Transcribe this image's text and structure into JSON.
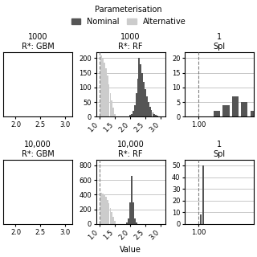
{
  "legend_title": "Parameterisation",
  "legend": "upper center",
  "chart_data": [
    {
      "type": "histogram",
      "title": "1000",
      "subtitle": "R*: GBM",
      "xlim": [
        1.75,
        3.15
      ],
      "xticks": [
        {
          "value": 2.0,
          "label": "2.0"
        },
        {
          "value": 2.5,
          "label": "2.5"
        },
        {
          "value": 3.0,
          "label": "3.0"
        }
      ],
      "ylim": [
        0,
        22
      ],
      "yticks": [],
      "tick_labels": "x",
      "grid": true,
      "series": []
    },
    {
      "type": "histogram",
      "title": "1000",
      "subtitle": "R*: RF",
      "xlim": [
        0.88,
        3.15
      ],
      "xticks": [
        {
          "value": 1.0,
          "label": "1.0"
        },
        {
          "value": 1.5,
          "label": "1.5"
        },
        {
          "value": 2.0,
          "label": "2.0"
        },
        {
          "value": 2.5,
          "label": "2.5"
        },
        {
          "value": 3.0,
          "label": "3.0"
        }
      ],
      "ylim": [
        0,
        220
      ],
      "yticks": [
        0,
        50,
        100,
        150,
        200
      ],
      "grid": true,
      "vline": 1.0,
      "series": [
        {
          "name": "Nominal",
          "color": "#555555",
          "bin_width": 0.05,
          "x": [
            2.0,
            2.05,
            2.1,
            2.15,
            2.2,
            2.25,
            2.3,
            2.35,
            2.4,
            2.45,
            2.5,
            2.55,
            2.6,
            2.65,
            2.7,
            2.75,
            2.8,
            2.85,
            2.9,
            2.95,
            3.0
          ],
          "values": [
            5,
            10,
            20,
            40,
            80,
            130,
            200,
            180,
            150,
            120,
            95,
            70,
            50,
            35,
            22,
            14,
            9,
            5,
            3,
            1,
            0
          ]
        },
        {
          "name": "Alternative",
          "color": "#cccccc",
          "bin_width": 0.05,
          "x": [
            1.05,
            1.1,
            1.15,
            1.2,
            1.25,
            1.3,
            1.35,
            1.4,
            1.45,
            1.5
          ],
          "values": [
            210,
            200,
            185,
            165,
            140,
            110,
            80,
            55,
            30,
            10
          ]
        }
      ]
    },
    {
      "type": "histogram",
      "title": "1",
      "subtitle": "Spl",
      "xlim": [
        0.97,
        1.12
      ],
      "xticks": [
        {
          "value": 1.0,
          "label": "1.00"
        }
      ],
      "ylim": [
        0,
        22
      ],
      "yticks": [
        0,
        5,
        10,
        15,
        20
      ],
      "grid": true,
      "vline": 1.0,
      "series": [
        {
          "name": "Nominal",
          "color": "#555555",
          "bin_width": 0.015,
          "x": [
            1.04,
            1.06,
            1.08,
            1.1,
            1.12
          ],
          "values": [
            2,
            4,
            7,
            5,
            2
          ]
        }
      ]
    },
    {
      "type": "histogram",
      "title": "10,000",
      "subtitle": "R*: GBM",
      "xlim": [
        1.75,
        3.15
      ],
      "xticks": [
        {
          "value": 2.0,
          "label": "2.0"
        },
        {
          "value": 2.5,
          "label": "2.5"
        },
        {
          "value": 3.0,
          "label": "3.0"
        }
      ],
      "ylim": [
        0,
        880
      ],
      "yticks": [],
      "tick_labels": "x",
      "grid": true,
      "series": []
    },
    {
      "type": "histogram",
      "title": "10,000",
      "subtitle": "R*: RF",
      "xlim": [
        0.88,
        3.15
      ],
      "xticks": [
        {
          "value": 1.0,
          "label": "1.0"
        },
        {
          "value": 1.5,
          "label": "1.5"
        },
        {
          "value": 2.0,
          "label": "2.0"
        },
        {
          "value": 2.5,
          "label": "2.5"
        },
        {
          "value": 3.0,
          "label": "3.0"
        }
      ],
      "ylim": [
        0,
        880
      ],
      "yticks": [
        0,
        200,
        400,
        600,
        800
      ],
      "grid": true,
      "vline": 1.0,
      "x_label": "Value",
      "series": [
        {
          "name": "Nominal",
          "color": "#555555",
          "bin_width": 0.05,
          "x": [
            1.85,
            1.9,
            1.95,
            2.0,
            2.05,
            2.1,
            2.15,
            2.2,
            2.25,
            2.3,
            2.35,
            2.4,
            2.45,
            2.5
          ],
          "values": [
            5,
            20,
            80,
            300,
            660,
            300,
            80,
            20,
            5,
            2,
            1,
            0,
            0,
            0
          ]
        },
        {
          "name": "Alternative",
          "color": "#cccccc",
          "bin_width": 0.05,
          "x": [
            1.05,
            1.1,
            1.15,
            1.2,
            1.25,
            1.3,
            1.35,
            1.4,
            1.45,
            1.5
          ],
          "values": [
            430,
            420,
            400,
            370,
            330,
            280,
            220,
            160,
            100,
            40
          ]
        }
      ]
    },
    {
      "type": "histogram",
      "title": "1",
      "subtitle": "Spl",
      "xlim": [
        0.97,
        1.12
      ],
      "xticks": [
        {
          "value": 1.0,
          "label": "1.00"
        }
      ],
      "ylim": [
        0,
        55
      ],
      "yticks": [
        0,
        10,
        20,
        30,
        40,
        50
      ],
      "grid": true,
      "vline": 1.0,
      "series": [
        {
          "name": "Nominal",
          "color": "#555555",
          "bin_width": 0.004,
          "x": [
            1.005,
            1.01
          ],
          "values": [
            8,
            50
          ]
        }
      ]
    }
  ]
}
